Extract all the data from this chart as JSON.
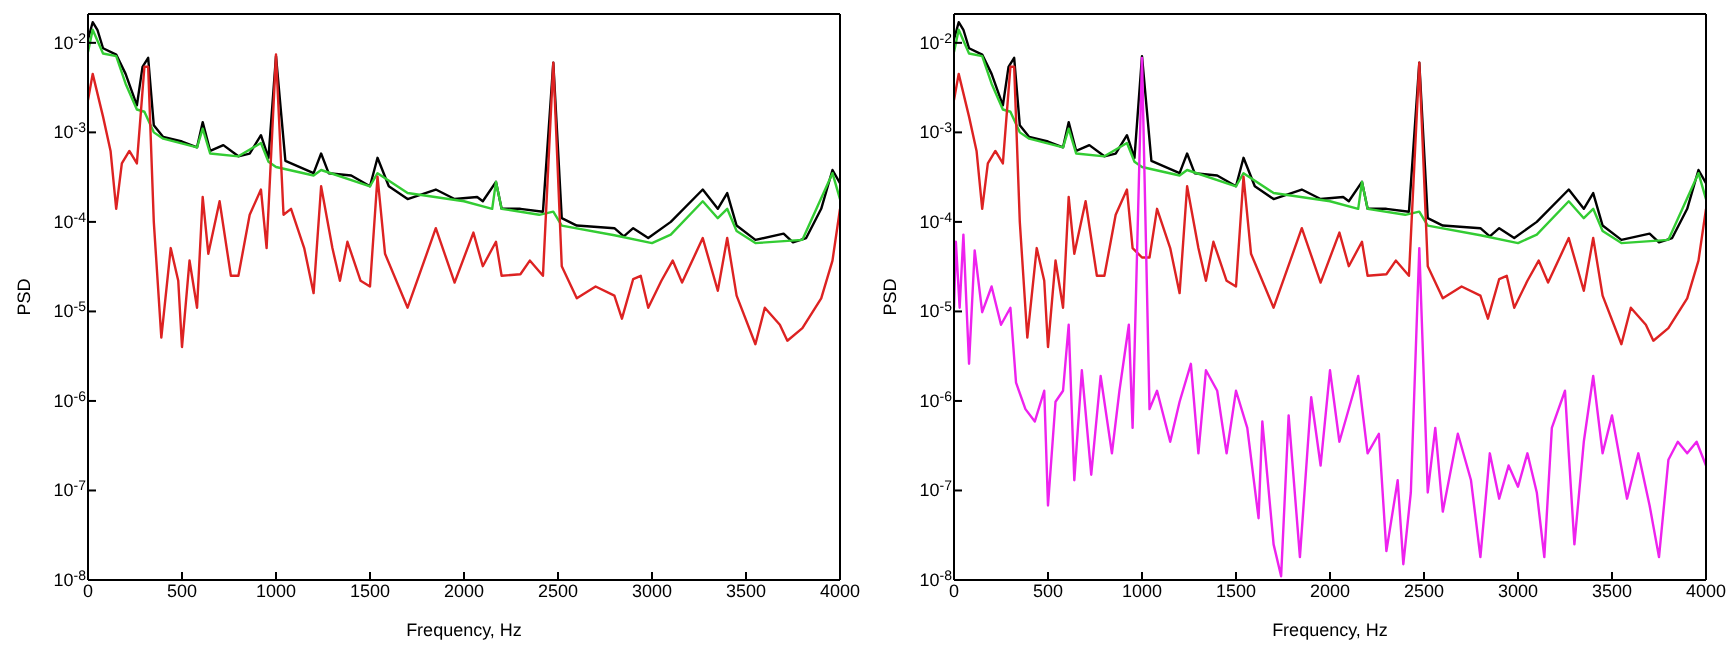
{
  "chart_data": [
    {
      "type": "line",
      "xlabel": "Frequency, Hz",
      "ylabel": "PSD",
      "log": "y",
      "xlim": [
        0,
        4000
      ],
      "xticks": [
        0,
        500,
        1000,
        1500,
        2000,
        2500,
        3000,
        3500,
        4000
      ],
      "ylim": [
        1e-08,
        0.021
      ],
      "yticks": [
        {
          "value": 1e-08,
          "label": "10$^{-8}$"
        },
        {
          "value": 1e-07,
          "label": "10$^{-7}$"
        },
        {
          "value": 1e-06,
          "label": "10$^{-6}$"
        },
        {
          "value": 1e-05,
          "label": "10$^{-5}$"
        },
        {
          "value": 0.0001,
          "label": "10$^{-4}$"
        },
        {
          "value": 0.001,
          "label": "10$^{-3}$"
        },
        {
          "value": 0.01,
          "label": "10$^{-2}$"
        }
      ],
      "series": [
        {
          "color": "#000000",
          "x": [
            0,
            25,
            50,
            80,
            150,
            200,
            260,
            290,
            320,
            350,
            400,
            500,
            580,
            610,
            650,
            720,
            800,
            860,
            920,
            960,
            1000,
            1050,
            1200,
            1240,
            1280,
            1400,
            1500,
            1540,
            1600,
            1700,
            1850,
            1950,
            2070,
            2100,
            2170,
            2200,
            2300,
            2420,
            2475,
            2520,
            2600,
            2800,
            2850,
            2900,
            2980,
            3100,
            3270,
            3350,
            3400,
            3450,
            3550,
            3700,
            3750,
            3820,
            3900,
            3960,
            4000
          ],
          "values": [
            0.011,
            0.017,
            0.014,
            0.0087,
            0.0074,
            0.0045,
            0.002,
            0.0054,
            0.0068,
            0.0012,
            0.00089,
            0.00079,
            0.00068,
            0.0013,
            0.00062,
            0.00072,
            0.00054,
            0.00058,
            0.00093,
            0.00052,
            0.0071,
            0.00048,
            0.00035,
            0.00058,
            0.00035,
            0.00033,
            0.00025,
            0.00052,
            0.00025,
            0.00018,
            0.00023,
            0.00018,
            0.00019,
            0.00017,
            0.00028,
            0.00014,
            0.00014,
            0.00013,
            0.006,
            0.00011,
            9.1e-05,
            8.5e-05,
            6.9e-05,
            8.5e-05,
            6.6e-05,
            0.0001,
            0.00023,
            0.00014,
            0.00021,
            9.1e-05,
            6.3e-05,
            7.4e-05,
            5.9e-05,
            6.6e-05,
            0.00014,
            0.00038,
            0.00027
          ]
        },
        {
          "color": "#33cc33",
          "x": [
            0,
            25,
            80,
            150,
            200,
            260,
            300,
            350,
            400,
            580,
            610,
            650,
            800,
            920,
            960,
            1000,
            1200,
            1240,
            1500,
            1540,
            1700,
            2000,
            2150,
            2170,
            2200,
            2400,
            2475,
            2520,
            2800,
            3000,
            3100,
            3270,
            3350,
            3400,
            3450,
            3550,
            3800,
            3960,
            4000
          ],
          "values": [
            0.0079,
            0.014,
            0.0076,
            0.0071,
            0.0035,
            0.0018,
            0.0017,
            0.001,
            0.00085,
            0.00068,
            0.0011,
            0.00058,
            0.00054,
            0.00076,
            0.00047,
            0.00041,
            0.00033,
            0.00038,
            0.00025,
            0.00035,
            0.00021,
            0.00017,
            0.00014,
            0.00028,
            0.00014,
            0.00012,
            0.00013,
            9.1e-05,
            7.1e-05,
            5.8e-05,
            7.2e-05,
            0.00017,
            0.00011,
            0.00014,
            7.9e-05,
            5.8e-05,
            6.3e-05,
            0.00035,
            0.00018
          ]
        },
        {
          "color": "#dd2222",
          "x": [
            0,
            25,
            80,
            120,
            150,
            180,
            220,
            260,
            300,
            320,
            350,
            390,
            440,
            480,
            500,
            540,
            580,
            610,
            640,
            700,
            760,
            800,
            860,
            920,
            950,
            1000,
            1040,
            1080,
            1150,
            1200,
            1240,
            1300,
            1340,
            1380,
            1450,
            1500,
            1540,
            1580,
            1700,
            1850,
            1950,
            2050,
            2100,
            2170,
            2200,
            2300,
            2350,
            2420,
            2475,
            2520,
            2600,
            2700,
            2800,
            2840,
            2900,
            2940,
            2980,
            3050,
            3110,
            3160,
            3270,
            3350,
            3400,
            3450,
            3550,
            3600,
            3680,
            3720,
            3800,
            3900,
            3960,
            4000
          ],
          "values": [
            0.0023,
            0.0045,
            0.0015,
            0.00062,
            0.00014,
            0.00045,
            0.00062,
            0.00045,
            0.0054,
            0.0054,
            0.0001,
            5.1e-06,
            5.1e-05,
            2.2e-05,
            4e-06,
            3.7e-05,
            1.1e-05,
            0.00019,
            4.4e-05,
            0.00017,
            2.5e-05,
            2.5e-05,
            0.00012,
            0.00023,
            5.1e-05,
            0.0074,
            0.00012,
            0.00014,
            5.1e-05,
            1.6e-05,
            0.00025,
            5.1e-05,
            2.2e-05,
            6e-05,
            2.2e-05,
            1.9e-05,
            0.00032,
            4.4e-05,
            1.1e-05,
            8.5e-05,
            2.1e-05,
            7.6e-05,
            3.2e-05,
            6e-05,
            2.5e-05,
            2.6e-05,
            3.7e-05,
            2.5e-05,
            0.006,
            3.2e-05,
            1.4e-05,
            1.9e-05,
            1.5e-05,
            8.3e-06,
            2.3e-05,
            2.5e-05,
            1.1e-05,
            2.2e-05,
            3.7e-05,
            2.1e-05,
            6.6e-05,
            1.7e-05,
            6.6e-05,
            1.5e-05,
            4.3e-06,
            1.1e-05,
            7.1e-06,
            4.7e-06,
            6.5e-06,
            1.4e-05,
            3.7e-05,
            0.00014
          ]
        }
      ]
    },
    {
      "type": "line",
      "xlabel": "Frequency, Hz",
      "ylabel": "PSD",
      "log": "y",
      "xlim": [
        0,
        4000
      ],
      "xticks": [
        0,
        500,
        1000,
        1500,
        2000,
        2500,
        3000,
        3500,
        4000
      ],
      "ylim": [
        1e-08,
        0.021
      ],
      "yticks": [
        {
          "value": 1e-08,
          "label": "10$^{-8}$"
        },
        {
          "value": 1e-07,
          "label": "10$^{-7}$"
        },
        {
          "value": 1e-06,
          "label": "10$^{-6}$"
        },
        {
          "value": 1e-05,
          "label": "10$^{-5}$"
        },
        {
          "value": 0.0001,
          "label": "10$^{-4}$"
        },
        {
          "value": 0.001,
          "label": "10$^{-3}$"
        },
        {
          "value": 0.01,
          "label": "10$^{-2}$"
        }
      ],
      "series": [
        {
          "color": "#000000",
          "x": [
            0,
            25,
            50,
            80,
            150,
            200,
            260,
            290,
            320,
            350,
            400,
            500,
            580,
            610,
            650,
            720,
            800,
            860,
            920,
            960,
            1000,
            1050,
            1200,
            1240,
            1280,
            1400,
            1500,
            1540,
            1600,
            1700,
            1850,
            1950,
            2070,
            2100,
            2170,
            2200,
            2300,
            2420,
            2475,
            2520,
            2600,
            2800,
            2850,
            2900,
            2980,
            3100,
            3270,
            3350,
            3400,
            3450,
            3550,
            3700,
            3750,
            3820,
            3900,
            3960,
            4000
          ],
          "values": [
            0.011,
            0.017,
            0.014,
            0.0087,
            0.0074,
            0.0045,
            0.002,
            0.0054,
            0.0068,
            0.0012,
            0.00089,
            0.00079,
            0.00068,
            0.0013,
            0.00062,
            0.00072,
            0.00054,
            0.00058,
            0.00093,
            0.00052,
            0.0071,
            0.00048,
            0.00035,
            0.00058,
            0.00035,
            0.00033,
            0.00025,
            0.00052,
            0.00025,
            0.00018,
            0.00023,
            0.00018,
            0.00019,
            0.00017,
            0.00028,
            0.00014,
            0.00014,
            0.00013,
            0.006,
            0.00011,
            9.1e-05,
            8.5e-05,
            6.9e-05,
            8.5e-05,
            6.6e-05,
            0.0001,
            0.00023,
            0.00014,
            0.00021,
            9.1e-05,
            6.3e-05,
            7.4e-05,
            5.9e-05,
            6.6e-05,
            0.00014,
            0.00038,
            0.00027
          ]
        },
        {
          "color": "#33cc33",
          "x": [
            0,
            25,
            80,
            150,
            200,
            260,
            300,
            350,
            400,
            580,
            610,
            650,
            800,
            920,
            960,
            1000,
            1200,
            1240,
            1500,
            1540,
            1700,
            2000,
            2150,
            2170,
            2200,
            2400,
            2475,
            2520,
            2800,
            3000,
            3100,
            3270,
            3350,
            3400,
            3450,
            3550,
            3800,
            3960,
            4000
          ],
          "values": [
            0.0079,
            0.014,
            0.0076,
            0.0071,
            0.0035,
            0.0018,
            0.0017,
            0.001,
            0.00085,
            0.00068,
            0.0011,
            0.00058,
            0.00054,
            0.00076,
            0.00047,
            0.00041,
            0.00033,
            0.00038,
            0.00025,
            0.00035,
            0.00021,
            0.00017,
            0.00014,
            0.00028,
            0.00014,
            0.00012,
            0.00013,
            9.1e-05,
            7.1e-05,
            5.8e-05,
            7.2e-05,
            0.00017,
            0.00011,
            0.00014,
            7.9e-05,
            5.8e-05,
            6.3e-05,
            0.00035,
            0.00018
          ]
        },
        {
          "color": "#dd2222",
          "x": [
            0,
            25,
            80,
            120,
            150,
            180,
            220,
            260,
            300,
            320,
            350,
            390,
            440,
            480,
            500,
            540,
            580,
            610,
            640,
            700,
            760,
            800,
            860,
            920,
            950,
            1000,
            1040,
            1080,
            1150,
            1200,
            1240,
            1300,
            1340,
            1380,
            1450,
            1500,
            1540,
            1580,
            1700,
            1850,
            1950,
            2050,
            2100,
            2170,
            2200,
            2300,
            2350,
            2420,
            2475,
            2520,
            2600,
            2700,
            2800,
            2840,
            2900,
            2940,
            2980,
            3050,
            3110,
            3160,
            3270,
            3350,
            3400,
            3450,
            3550,
            3600,
            3680,
            3720,
            3800,
            3900,
            3960,
            4000
          ],
          "values": [
            0.0023,
            0.0045,
            0.0015,
            0.00062,
            0.00014,
            0.00045,
            0.00062,
            0.00045,
            0.0054,
            0.0054,
            0.0001,
            5.1e-06,
            5.1e-05,
            2.2e-05,
            4e-06,
            3.7e-05,
            1.1e-05,
            0.00019,
            4.4e-05,
            0.00017,
            2.5e-05,
            2.5e-05,
            0.00012,
            0.00023,
            5.1e-05,
            4e-05,
            4e-05,
            0.00014,
            5.1e-05,
            1.6e-05,
            0.00025,
            5.1e-05,
            2.2e-05,
            6e-05,
            2.2e-05,
            1.9e-05,
            0.00032,
            4.4e-05,
            1.1e-05,
            8.5e-05,
            2.1e-05,
            7.6e-05,
            3.2e-05,
            6e-05,
            2.5e-05,
            2.6e-05,
            3.7e-05,
            2.5e-05,
            0.006,
            3.2e-05,
            1.4e-05,
            1.9e-05,
            1.5e-05,
            8.3e-06,
            2.3e-05,
            2.5e-05,
            1.1e-05,
            2.2e-05,
            3.7e-05,
            2.1e-05,
            6.6e-05,
            1.7e-05,
            6.6e-05,
            1.5e-05,
            4.3e-06,
            1.1e-05,
            7.1e-06,
            4.7e-06,
            6.5e-06,
            1.4e-05,
            3.7e-05,
            0.00014
          ]
        },
        {
          "color": "#ee22ee",
          "x": [
            0,
            10,
            30,
            50,
            80,
            110,
            150,
            200,
            250,
            300,
            330,
            380,
            430,
            480,
            500,
            540,
            580,
            610,
            640,
            680,
            730,
            780,
            840,
            880,
            930,
            950,
            1000,
            1040,
            1080,
            1150,
            1200,
            1260,
            1300,
            1340,
            1400,
            1450,
            1500,
            1560,
            1620,
            1640,
            1700,
            1740,
            1780,
            1840,
            1900,
            1950,
            2000,
            2050,
            2150,
            2200,
            2260,
            2300,
            2360,
            2390,
            2430,
            2475,
            2520,
            2560,
            2600,
            2680,
            2750,
            2800,
            2850,
            2900,
            2950,
            3000,
            3050,
            3100,
            3140,
            3180,
            3250,
            3270,
            3300,
            3350,
            3400,
            3450,
            3500,
            3580,
            3640,
            3700,
            3750,
            3800,
            3850,
            3900,
            3950,
            4000
          ],
          "values": [
            1.1e-05,
            6e-05,
            1.1e-05,
            7.2e-05,
            2.6e-06,
            4.8e-05,
            9.8e-06,
            1.9e-05,
            7.1e-06,
            1.1e-05,
            1.6e-06,
            8.1e-07,
            5.9e-07,
            1.3e-06,
            6.8e-08,
            9.8e-07,
            1.3e-06,
            7.1e-06,
            1.3e-07,
            2.2e-06,
            1.5e-07,
            1.9e-06,
            2.6e-07,
            1.3e-06,
            7.1e-06,
            5e-07,
            0.0068,
            8.1e-07,
            1.3e-06,
            3.5e-07,
            9.8e-07,
            2.6e-06,
            2.6e-07,
            2.2e-06,
            1.3e-06,
            2.6e-07,
            1.3e-06,
            5e-07,
            4.9e-08,
            5.9e-07,
            2.5e-08,
            1.1e-08,
            6.9e-07,
            1.8e-08,
            1.1e-06,
            1.9e-07,
            2.2e-06,
            3.5e-07,
            1.9e-06,
            2.6e-07,
            4.3e-07,
            2.1e-08,
            1.3e-07,
            1.5e-08,
            9.5e-08,
            5.1e-05,
            9.5e-08,
            5e-07,
            5.8e-08,
            4.3e-07,
            1.3e-07,
            1.8e-08,
            2.6e-07,
            8.1e-08,
            1.9e-07,
            1.1e-07,
            2.6e-07,
            9.5e-08,
            1.8e-08,
            5e-07,
            1.3e-06,
            2.6e-07,
            2.5e-08,
            3.5e-07,
            1.9e-06,
            2.6e-07,
            6.9e-07,
            8.1e-08,
            2.6e-07,
            6.8e-08,
            1.8e-08,
            2.2e-07,
            3.5e-07,
            2.6e-07,
            3.5e-07,
            1.9e-07
          ]
        }
      ]
    }
  ]
}
